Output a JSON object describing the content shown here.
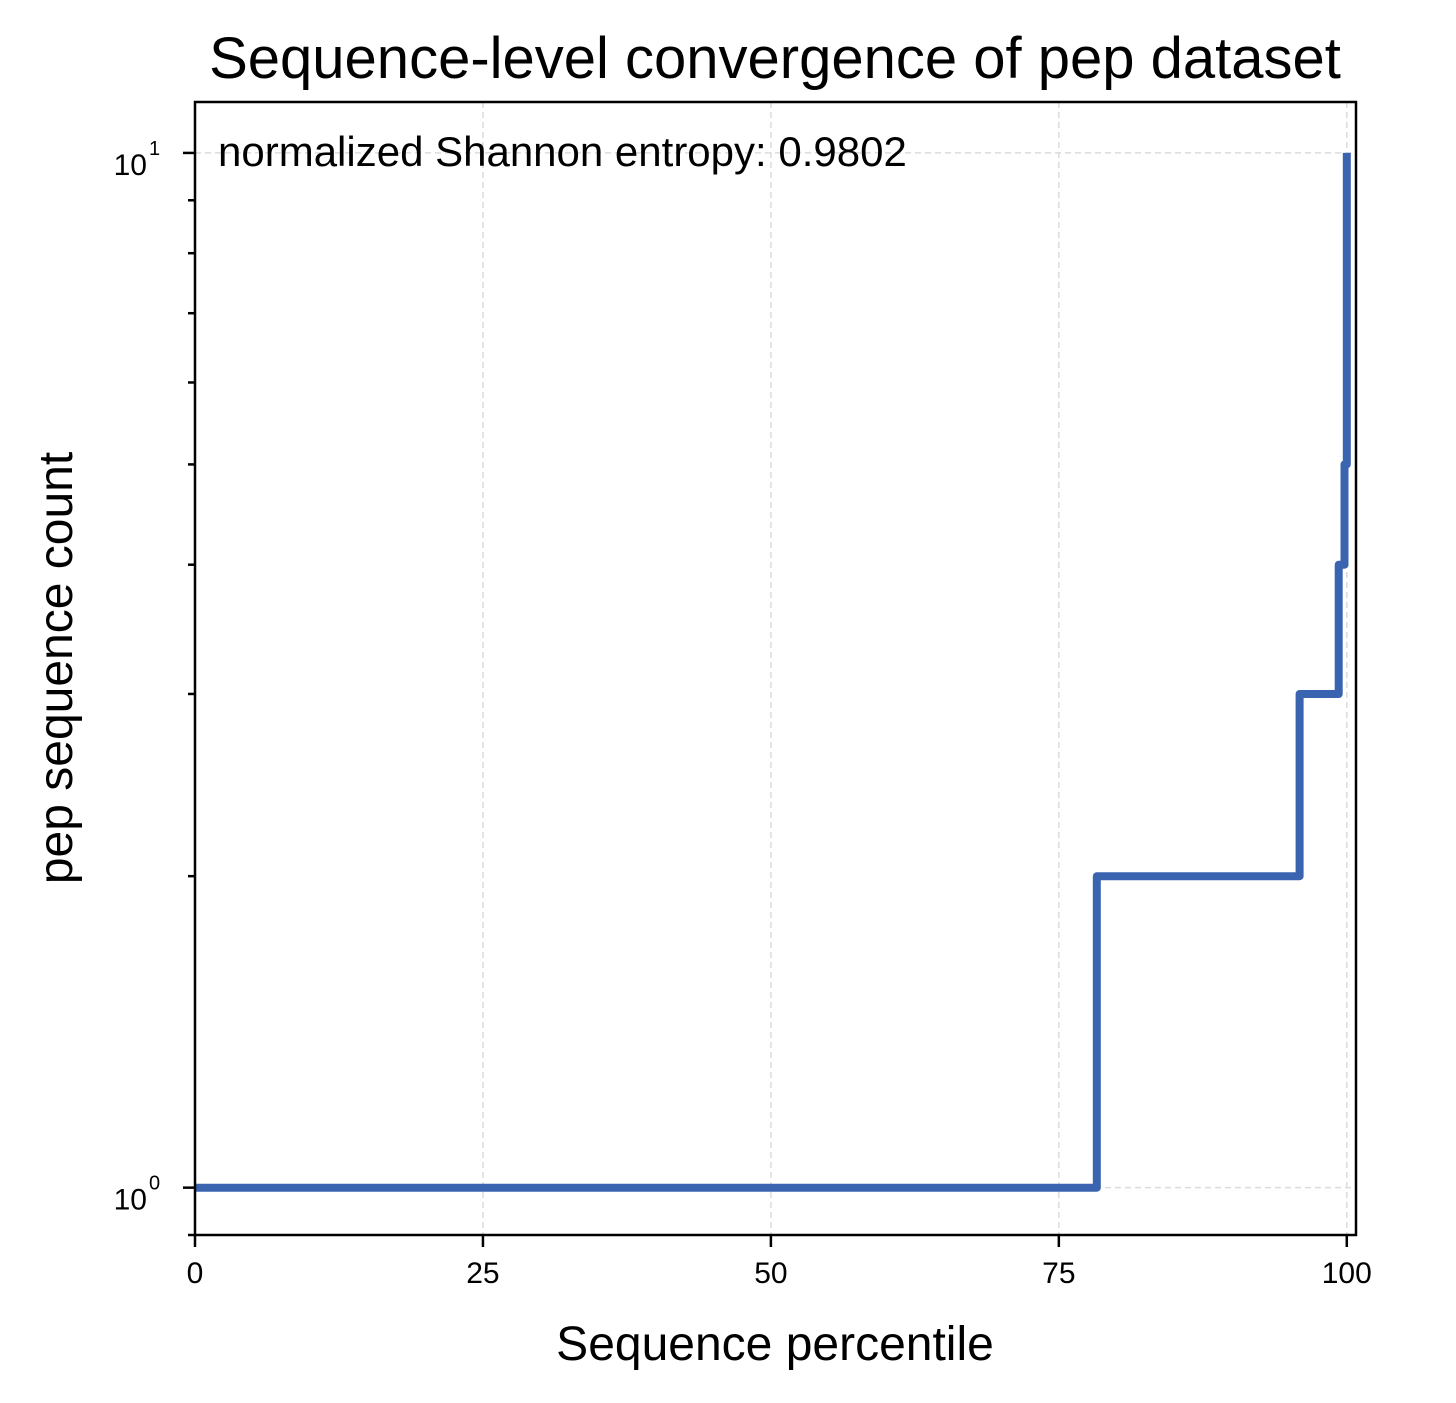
{
  "chart_data": {
    "type": "line",
    "title": "Sequence-level convergence of pep dataset",
    "xlabel": "Sequence percentile",
    "ylabel": "pep sequence count",
    "annotation": "normalized Shannon entropy: 0.9802",
    "xlim": [
      0,
      100.8
    ],
    "ylim": [
      0.9,
      11.2
    ],
    "yscale": "log",
    "grid": true,
    "color": "#3a63b0",
    "x_ticks": [
      {
        "value": 0,
        "label": "0"
      },
      {
        "value": 25,
        "label": "25"
      },
      {
        "value": 50,
        "label": "50"
      },
      {
        "value": 75,
        "label": "75"
      },
      {
        "value": 100,
        "label": "100"
      }
    ],
    "y_ticks": [
      {
        "value": 1,
        "base": "10",
        "exp": "0"
      },
      {
        "value": 10,
        "base": "10",
        "exp": "1"
      }
    ],
    "y_minor_ticks": [
      0.9,
      2,
      3,
      4,
      5,
      6,
      7,
      8,
      9
    ],
    "series": [
      {
        "x": [
          0,
          78.3,
          78.3,
          95.9,
          95.9,
          99.3,
          99.3,
          99.8,
          99.8,
          100,
          100
        ],
        "y": [
          1,
          1,
          2,
          2,
          3,
          3,
          4,
          4,
          5,
          5,
          10
        ]
      }
    ]
  }
}
